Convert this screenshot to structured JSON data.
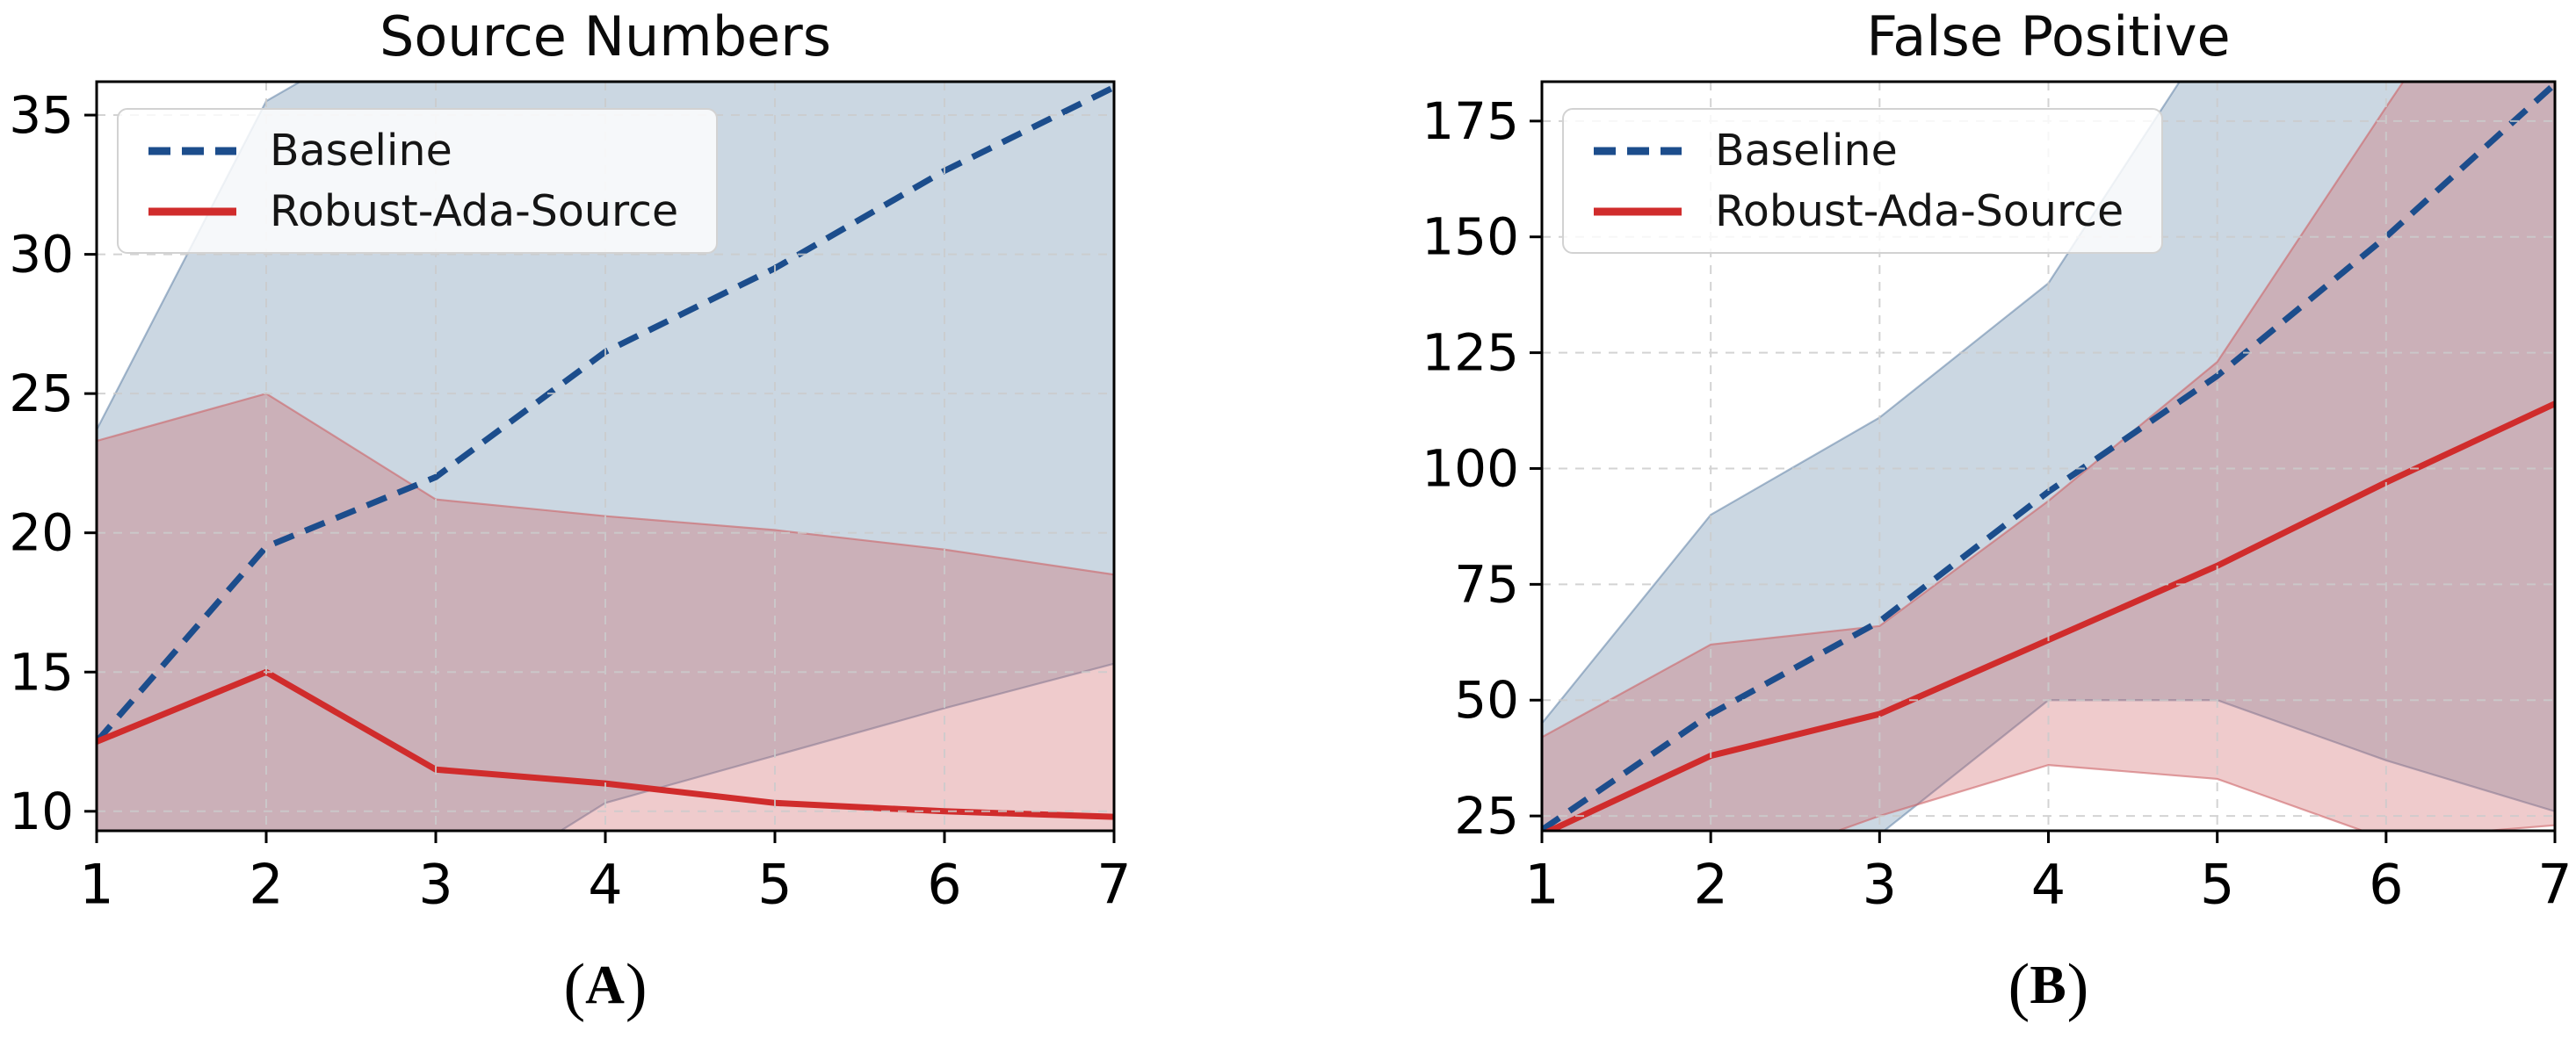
{
  "figure": {
    "background": "#ffffff",
    "grid_color": "#cccccc",
    "spine_color": "#000000",
    "tick_label_color": "#000000"
  },
  "chart_data": {
    "type": "line",
    "charts": [
      {
        "id": "A",
        "title": "Source Numbers",
        "caption": {
          "open": "(",
          "letter": "A",
          "close": ")"
        },
        "x": [
          1,
          2,
          3,
          4,
          5,
          6,
          7
        ],
        "x_ticks": [
          1,
          2,
          3,
          4,
          5,
          6,
          7
        ],
        "y_ticks": [
          10,
          15,
          20,
          25,
          30,
          35
        ],
        "xlim": [
          1,
          7
        ],
        "ylim": [
          9.3,
          36.2
        ],
        "grid": true,
        "legend_position": "upper-left",
        "series": [
          {
            "name": "Baseline",
            "style": "dashed",
            "color": "#1c4d8c",
            "band_fill": "rgba(105,139,173,0.35)",
            "band_edge": "rgba(96,130,165,0.55)",
            "mean": [
              12.5,
              19.5,
              22.0,
              26.5,
              29.5,
              33.0,
              36.0
            ],
            "lower": [
              1.0,
              3.5,
              6.5,
              10.3,
              12.0,
              13.7,
              15.3
            ],
            "upper": [
              23.7,
              35.5,
              39.0,
              43.0,
              46.5,
              50.0,
              53.0
            ]
          },
          {
            "name": "Robust-Ada-Source",
            "style": "solid",
            "color": "#d02c2c",
            "band_fill": "rgba(205,92,96,0.32)",
            "band_edge": "rgba(205,100,104,0.6)",
            "mean": [
              12.5,
              15.0,
              11.5,
              11.0,
              10.3,
              10.0,
              9.8
            ],
            "lower": [
              4.0,
              5.0,
              5.5,
              6.0,
              6.5,
              7.0,
              7.2
            ],
            "upper": [
              23.3,
              25.0,
              21.2,
              20.6,
              20.1,
              19.4,
              18.5
            ]
          }
        ]
      },
      {
        "id": "B",
        "title": "False Positive",
        "caption": {
          "open": "(",
          "letter": "B",
          "close": ")"
        },
        "x": [
          1,
          2,
          3,
          4,
          5,
          6,
          7
        ],
        "x_ticks": [
          1,
          2,
          3,
          4,
          5,
          6,
          7
        ],
        "y_ticks": [
          25,
          50,
          75,
          100,
          125,
          150,
          175
        ],
        "xlim": [
          1,
          7
        ],
        "ylim": [
          21.8,
          183.5
        ],
        "grid": true,
        "legend_position": "upper-left",
        "series": [
          {
            "name": "Baseline",
            "style": "dashed",
            "color": "#1c4d8c",
            "band_fill": "rgba(105,139,173,0.35)",
            "band_edge": "rgba(96,130,165,0.55)",
            "mean": [
              22,
              47,
              67,
              95,
              120,
              150,
              183
            ],
            "lower": [
              0,
              5,
              21,
              50,
              50,
              37,
              26
            ],
            "upper": [
              45,
              90,
              111,
              140,
              196,
              235,
              270
            ]
          },
          {
            "name": "Robust-Ada-Source",
            "style": "solid",
            "color": "#d02c2c",
            "band_fill": "rgba(205,92,96,0.32)",
            "band_edge": "rgba(205,100,104,0.6)",
            "mean": [
              21,
              38,
              47,
              63,
              79,
              97,
              114
            ],
            "lower": [
              1,
              12,
              25,
              36,
              33,
              20,
              23
            ],
            "upper": [
              42,
              62,
              66,
              93,
              123,
              178,
              232
            ]
          }
        ]
      }
    ]
  }
}
